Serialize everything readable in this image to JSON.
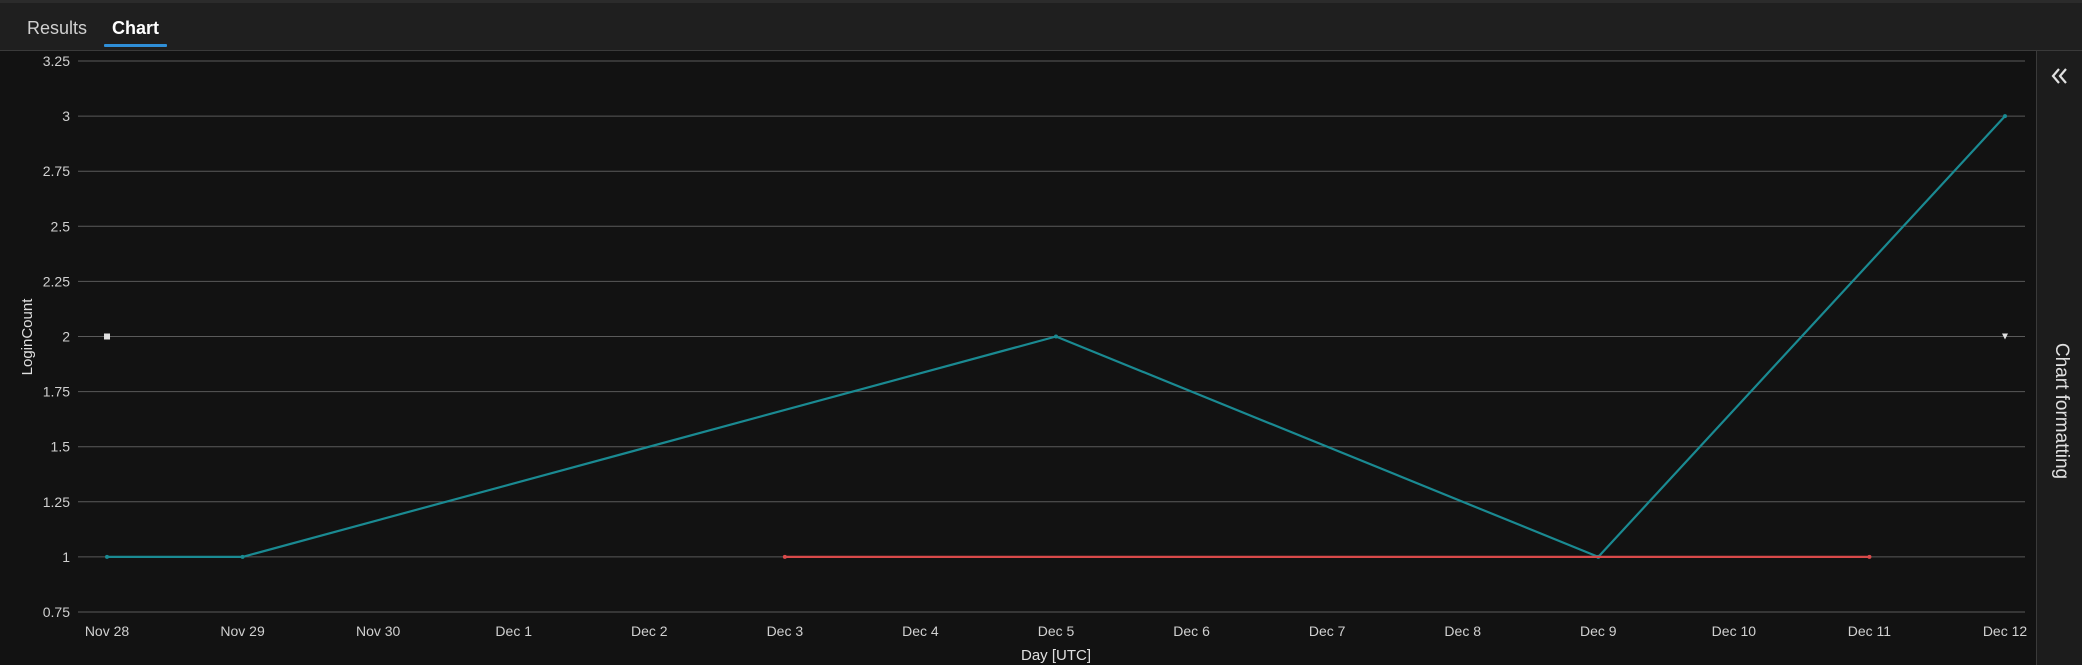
{
  "tabs": [
    {
      "label": "Results",
      "active": false
    },
    {
      "label": "Chart",
      "active": true
    }
  ],
  "side_panel": {
    "label": "Chart formatting",
    "collapse_icon": "double-chevron-left-icon"
  },
  "colors": {
    "background": "#121212",
    "grid": "#5a5a5a",
    "series_teal": "#1a8a92",
    "series_red": "#d84a4a",
    "tab_accent": "#2f8fd8"
  },
  "chart_data": {
    "type": "line",
    "xlabel": "Day [UTC]",
    "ylabel": "LoginCount",
    "x_categories": [
      "Nov 28",
      "Nov 29",
      "Nov 30",
      "Dec 1",
      "Dec 2",
      "Dec 3",
      "Dec 4",
      "Dec 5",
      "Dec 6",
      "Dec 7",
      "Dec 8",
      "Dec 9",
      "Dec 10",
      "Dec 11",
      "Dec 12"
    ],
    "ylim": [
      0.75,
      3.25
    ],
    "yticks": [
      "0.75",
      "1",
      "1.25",
      "1.5",
      "1.75",
      "2",
      "2.25",
      "2.5",
      "2.75",
      "3",
      "3.25"
    ],
    "grid": true,
    "legend": "none",
    "series": [
      {
        "color": "#1a8a92",
        "points": [
          [
            "Nov 28",
            1
          ],
          [
            "Nov 29",
            1
          ],
          [
            "Dec 5",
            2
          ],
          [
            "Dec 9",
            1
          ],
          [
            "Dec 12",
            3
          ]
        ]
      },
      {
        "color": "#d84a4a",
        "points": [
          [
            "Dec 3",
            1
          ],
          [
            "Dec 11",
            1
          ]
        ]
      },
      {
        "color": "#e0e0e0",
        "marker": "square",
        "points": [
          [
            "Nov 28",
            2
          ]
        ]
      },
      {
        "color": "#e0e0e0",
        "marker": "triangle-down",
        "points": [
          [
            "Dec 12",
            2
          ]
        ]
      }
    ]
  }
}
